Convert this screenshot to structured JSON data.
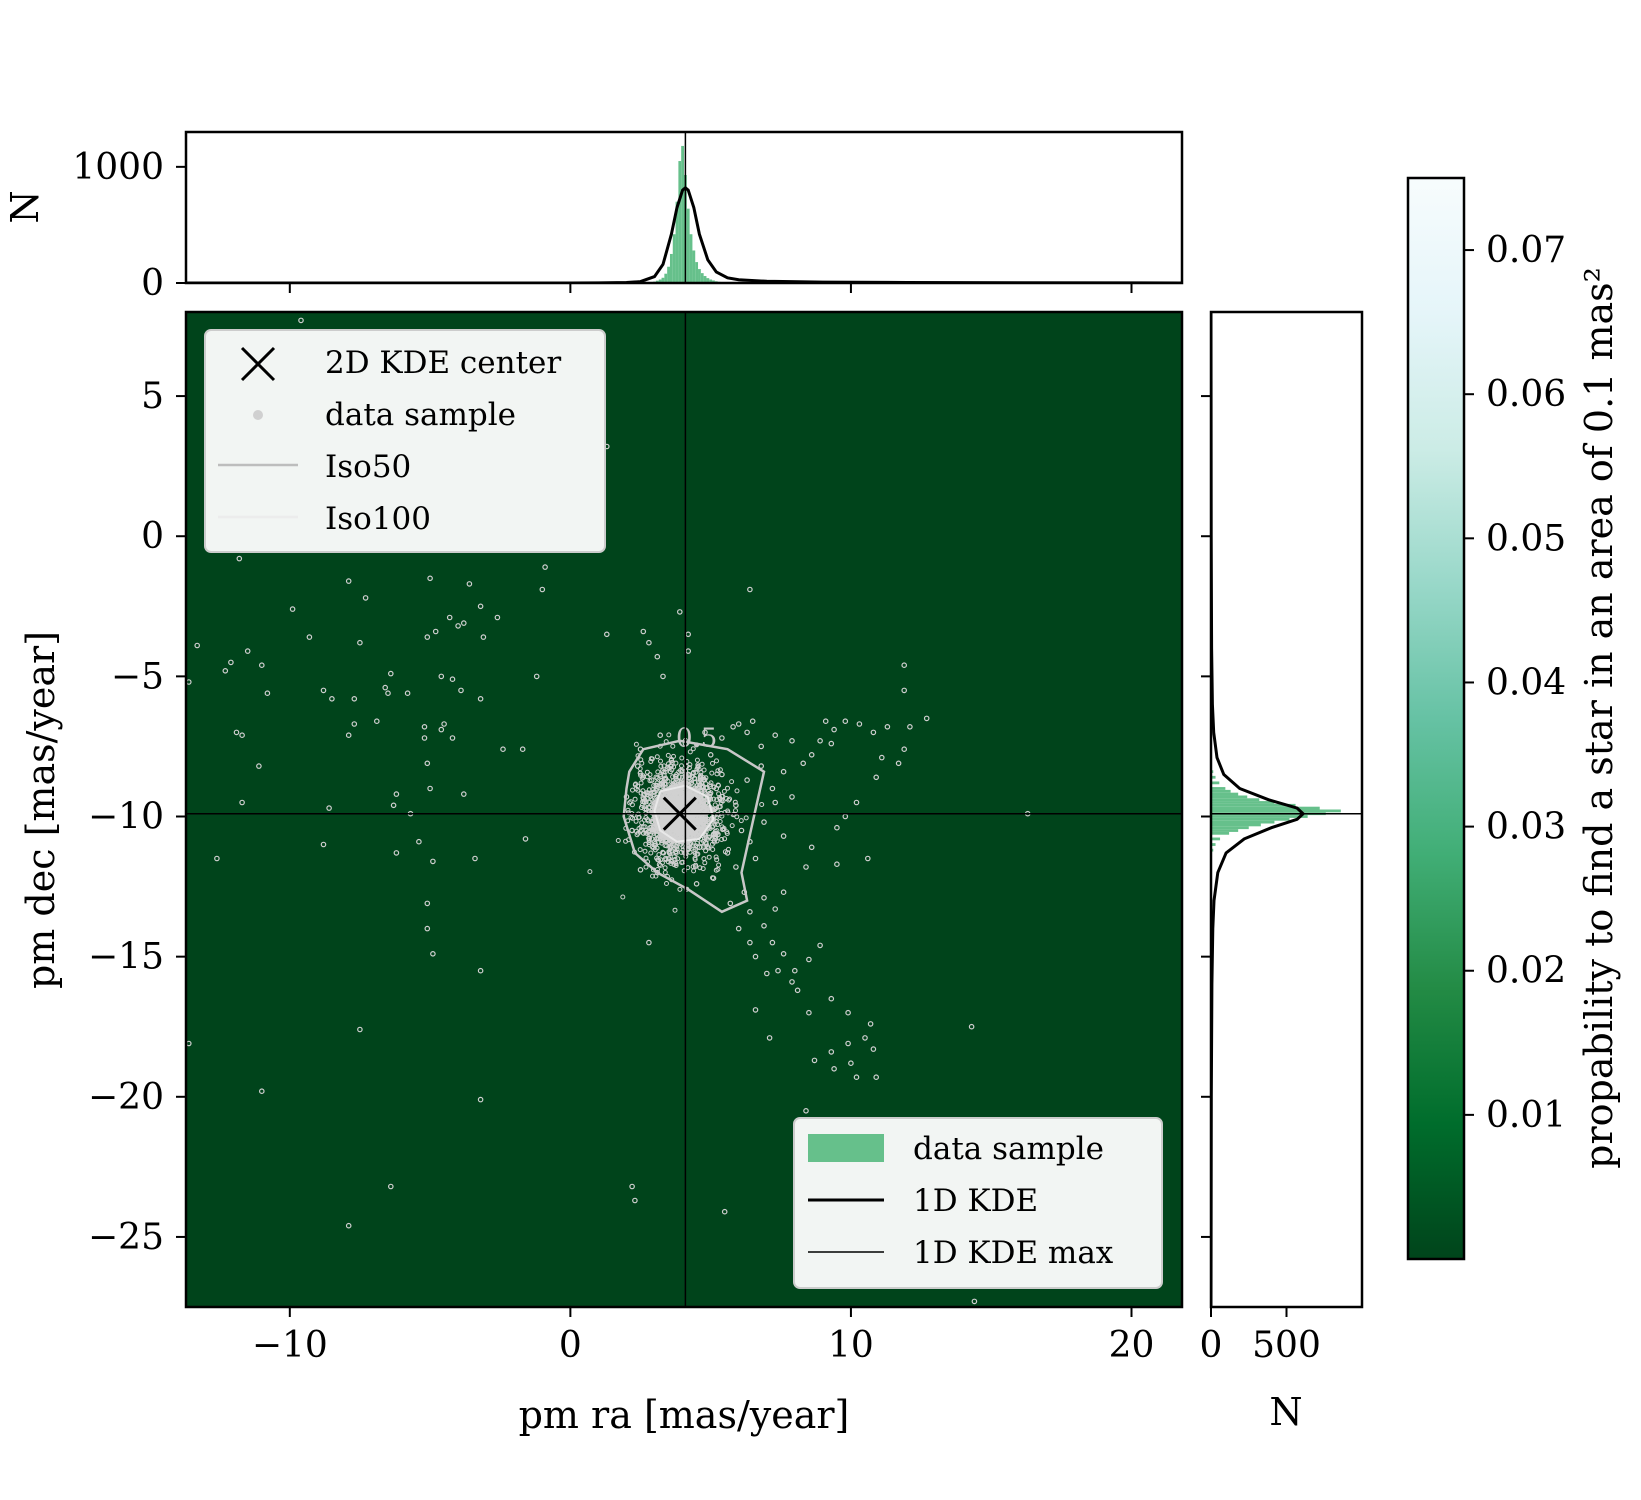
{
  "chart_data": [
    {
      "type": "heatmap",
      "panel": "main",
      "xlabel": "pm ra [mas/year]",
      "ylabel": "pm dec [mas/year]",
      "xlim": [
        -13.7,
        21.8
      ],
      "ylim": [
        -27.5,
        8.0
      ],
      "xticks": [
        -10,
        0,
        10,
        20
      ],
      "xtick_labels": [
        "−10",
        "0",
        "10",
        "20"
      ],
      "yticks": [
        5,
        0,
        -5,
        -10,
        -15,
        -20,
        -25
      ],
      "ytick_labels": [
        "5",
        "0",
        "−5",
        "−10",
        "−15",
        "−20",
        "−25"
      ],
      "background_color": "#00441b",
      "kde_center": {
        "x": 3.9,
        "y": -9.9
      },
      "kde_max_ra": 4.1,
      "kde_max_dec": -9.9,
      "contour_label": "0.5",
      "legend_upper": {
        "position": "upper-left",
        "entries": [
          "2D KDE center",
          "data sample",
          "Iso50",
          "Iso100"
        ]
      },
      "legend_lower": {
        "position": "lower-right",
        "entries": [
          "data sample",
          "1D KDE",
          "1D KDE max"
        ]
      },
      "sample_points": [
        [
          -9.6,
          7.7
        ],
        [
          1.3,
          3.2
        ],
        [
          -11.8,
          -0.8
        ],
        [
          -7.9,
          -1.6
        ],
        [
          -5.0,
          -1.5
        ],
        [
          -3.6,
          -1.7
        ],
        [
          -1.0,
          -1.9
        ],
        [
          -0.9,
          -1.1
        ],
        [
          -7.3,
          -2.2
        ],
        [
          -9.9,
          -2.6
        ],
        [
          -3.2,
          -2.5
        ],
        [
          -2.6,
          -2.9
        ],
        [
          -4.3,
          -2.9
        ],
        [
          -4.0,
          -3.2
        ],
        [
          -3.8,
          -3.1
        ],
        [
          -4.8,
          -3.4
        ],
        [
          -3.1,
          -3.6
        ],
        [
          -5.1,
          -3.6
        ],
        [
          -7.5,
          -3.8
        ],
        [
          -9.3,
          -3.6
        ],
        [
          -13.3,
          -3.9
        ],
        [
          -11.5,
          -4.1
        ],
        [
          -12.1,
          -4.5
        ],
        [
          -12.3,
          -4.8
        ],
        [
          -11.0,
          -4.6
        ],
        [
          -6.4,
          -4.9
        ],
        [
          -1.2,
          -5.0
        ],
        [
          -13.6,
          -5.2
        ],
        [
          -4.6,
          -5.0
        ],
        [
          -4.2,
          -5.1
        ],
        [
          -6.6,
          -5.4
        ],
        [
          -3.9,
          -5.5
        ],
        [
          -8.8,
          -5.5
        ],
        [
          -10.8,
          -5.6
        ],
        [
          -6.5,
          -5.6
        ],
        [
          -5.8,
          -5.6
        ],
        [
          -3.2,
          -5.8
        ],
        [
          -8.5,
          -5.8
        ],
        [
          -7.7,
          -5.8
        ],
        [
          -6.9,
          -6.6
        ],
        [
          -7.7,
          -6.7
        ],
        [
          -4.5,
          -6.7
        ],
        [
          -5.2,
          -6.8
        ],
        [
          -4.6,
          -6.9
        ],
        [
          -7.9,
          -7.1
        ],
        [
          -11.9,
          -7.0
        ],
        [
          -11.7,
          -7.1
        ],
        [
          -5.2,
          -7.2
        ],
        [
          -4.2,
          -7.2
        ],
        [
          -2.4,
          -7.6
        ],
        [
          -1.7,
          -7.6
        ],
        [
          -5.1,
          -8.1
        ],
        [
          -11.1,
          -8.2
        ],
        [
          -6.2,
          -9.2
        ],
        [
          -5.0,
          -9.0
        ],
        [
          -3.8,
          -9.2
        ],
        [
          -11.7,
          -9.5
        ],
        [
          -6.3,
          -9.6
        ],
        [
          -5.7,
          -9.9
        ],
        [
          -8.6,
          -9.7
        ],
        [
          -8.8,
          -11.0
        ],
        [
          -5.4,
          -10.9
        ],
        [
          -6.2,
          -11.3
        ],
        [
          -12.6,
          -11.5
        ],
        [
          -3.4,
          -11.5
        ],
        [
          -4.9,
          -11.6
        ],
        [
          -1.6,
          -10.8
        ],
        [
          -5.1,
          -13.1
        ],
        [
          -5.1,
          -14.0
        ],
        [
          -4.9,
          -14.9
        ],
        [
          -3.2,
          -15.5
        ],
        [
          -7.5,
          -17.6
        ],
        [
          -13.6,
          -18.1
        ],
        [
          -11.0,
          -19.8
        ],
        [
          -3.2,
          -20.1
        ],
        [
          -6.4,
          -23.2
        ],
        [
          -7.9,
          -24.6
        ],
        [
          14.4,
          -27.3
        ],
        [
          2.2,
          -23.2
        ],
        [
          2.3,
          -23.7
        ],
        [
          5.5,
          -24.1
        ],
        [
          8.4,
          -20.5
        ],
        [
          16.3,
          -9.9
        ],
        [
          14.3,
          -17.5
        ],
        [
          1.3,
          -3.5
        ],
        [
          2.6,
          -3.4
        ],
        [
          2.8,
          -3.8
        ],
        [
          3.1,
          -4.3
        ],
        [
          3.3,
          -5.0
        ],
        [
          3.9,
          -2.7
        ],
        [
          4.2,
          -3.5
        ],
        [
          6.4,
          -1.9
        ],
        [
          4.2,
          -4.1
        ],
        [
          12.1,
          -6.8
        ],
        [
          11.9,
          -4.6
        ],
        [
          11.9,
          -5.5
        ],
        [
          12.7,
          -6.5
        ],
        [
          11.3,
          -6.8
        ],
        [
          11.9,
          -7.6
        ],
        [
          11.7,
          -8.1
        ],
        [
          11.1,
          -7.9
        ],
        [
          10.9,
          -8.6
        ],
        [
          10.2,
          -9.5
        ],
        [
          10.8,
          -7.0
        ],
        [
          10.3,
          -6.7
        ],
        [
          9.8,
          -6.6
        ],
        [
          9.4,
          -6.9
        ],
        [
          9.1,
          -6.6
        ],
        [
          9.3,
          -7.4
        ],
        [
          8.9,
          -7.3
        ],
        [
          8.6,
          -7.8
        ],
        [
          8.3,
          -8.1
        ],
        [
          7.9,
          -7.3
        ],
        [
          7.6,
          -8.4
        ],
        [
          7.3,
          -7.1
        ],
        [
          6.8,
          -7.5
        ],
        [
          6.3,
          -7.0
        ],
        [
          5.8,
          -6.8
        ],
        [
          5.4,
          -7.2
        ],
        [
          5.0,
          -7.8
        ],
        [
          6.0,
          -6.7
        ],
        [
          6.5,
          -6.6
        ],
        [
          7.9,
          -9.3
        ],
        [
          7.3,
          -9.5
        ],
        [
          9.8,
          -10.0
        ],
        [
          9.5,
          -10.4
        ],
        [
          7.6,
          -10.7
        ],
        [
          8.6,
          -11.1
        ],
        [
          8.4,
          -11.8
        ],
        [
          9.5,
          -11.7
        ],
        [
          10.6,
          -11.5
        ],
        [
          7.6,
          -12.7
        ],
        [
          7.3,
          -13.3
        ],
        [
          6.9,
          -13.9
        ],
        [
          7.2,
          -14.5
        ],
        [
          7.6,
          -14.9
        ],
        [
          8.0,
          -15.5
        ],
        [
          7.9,
          -15.9
        ],
        [
          8.1,
          -16.2
        ],
        [
          7.4,
          -15.5
        ],
        [
          8.5,
          -15.1
        ],
        [
          8.9,
          -14.6
        ],
        [
          6.6,
          -16.9
        ],
        [
          7.1,
          -17.9
        ],
        [
          8.5,
          -17.0
        ],
        [
          9.3,
          -16.5
        ],
        [
          9.9,
          -17.0
        ],
        [
          10.7,
          -17.4
        ],
        [
          10.5,
          -17.9
        ],
        [
          9.9,
          -18.1
        ],
        [
          9.3,
          -18.4
        ],
        [
          8.7,
          -18.7
        ],
        [
          9.4,
          -19.0
        ],
        [
          10.2,
          -19.3
        ],
        [
          10.8,
          -18.3
        ],
        [
          10.9,
          -19.3
        ],
        [
          10.0,
          -18.8
        ],
        [
          2.8,
          -14.5
        ],
        [
          5.7,
          -13.1
        ],
        [
          6.2,
          -12.7
        ],
        [
          6.4,
          -13.4
        ],
        [
          6.9,
          -12.9
        ],
        [
          6.0,
          -14.0
        ],
        [
          6.4,
          -14.5
        ],
        [
          6.6,
          -15.0
        ],
        [
          7.0,
          -15.6
        ],
        [
          5.9,
          -11.8
        ],
        [
          6.6,
          -11.5
        ],
        [
          5.1,
          -12.2
        ],
        [
          4.5,
          -12.4
        ],
        [
          3.4,
          -11.5
        ],
        [
          2.5,
          -11.9
        ],
        [
          2.2,
          -10.5
        ],
        [
          2.0,
          -9.3
        ],
        [
          2.4,
          -8.2
        ],
        [
          2.5,
          -7.6
        ],
        [
          3.2,
          -7.1
        ],
        [
          3.6,
          -8.0
        ],
        [
          4.1,
          -7.4
        ],
        [
          4.8,
          -7.0
        ],
        [
          5.4,
          -8.5
        ],
        [
          6.3,
          -8.7
        ],
        [
          6.8,
          -8.2
        ],
        [
          7.2,
          -9.0
        ],
        [
          6.9,
          -10.2
        ],
        [
          6.4,
          -10.9
        ],
        [
          5.6,
          -11.3
        ],
        [
          2.9,
          -8.7
        ],
        [
          2.9,
          -10.8
        ],
        [
          3.1,
          -12.0
        ],
        [
          5.2,
          -9.0
        ],
        [
          5.9,
          -9.6
        ],
        [
          6.1,
          -10.5
        ],
        [
          4.6,
          -11.1
        ],
        [
          3.6,
          -10.9
        ]
      ]
    },
    {
      "type": "bar",
      "panel": "top-marginal",
      "xlabel": "",
      "ylabel": "N",
      "xlim": [
        -13.7,
        21.8
      ],
      "ylim": [
        0,
        1300
      ],
      "yticks": [
        0,
        1000
      ],
      "ytick_labels": [
        "0",
        "1000"
      ],
      "bar_color": "#66c08b",
      "bin_width": 0.1,
      "x": [
        2.8,
        2.9,
        3.0,
        3.1,
        3.2,
        3.3,
        3.4,
        3.5,
        3.6,
        3.7,
        3.8,
        3.9,
        4.0,
        4.1,
        4.2,
        4.3,
        4.4,
        4.5,
        4.6,
        4.7,
        4.8,
        4.9,
        5.0,
        5.1,
        5.2,
        5.3,
        5.4,
        5.5
      ],
      "values": [
        5,
        8,
        12,
        20,
        30,
        45,
        80,
        140,
        250,
        420,
        700,
        1050,
        1180,
        930,
        640,
        420,
        280,
        180,
        120,
        85,
        60,
        42,
        30,
        22,
        15,
        10,
        7,
        4
      ],
      "kde": {
        "x": [
          -13.7,
          0,
          1.0,
          2.0,
          2.5,
          3.0,
          3.3,
          3.6,
          3.8,
          4.0,
          4.1,
          4.2,
          4.4,
          4.6,
          4.9,
          5.2,
          5.6,
          6.0,
          7.0,
          9.0,
          12.0,
          21.8
        ],
        "values": [
          0,
          0,
          1,
          4,
          12,
          55,
          160,
          420,
          650,
          800,
          820,
          800,
          650,
          420,
          200,
          95,
          45,
          28,
          15,
          8,
          4,
          0
        ]
      },
      "kde_max_x": 4.1
    },
    {
      "type": "bar",
      "panel": "right-marginal",
      "xlabel": "N",
      "ylabel": "",
      "xlim": [
        0,
        1000
      ],
      "ylim": [
        -27.5,
        8.0
      ],
      "xticks": [
        0,
        500
      ],
      "xtick_labels": [
        "0",
        "500"
      ],
      "bar_color": "#66c08b",
      "bin_width": 0.1,
      "y": [
        -11.2,
        -11.0,
        -10.8,
        -10.6,
        -10.5,
        -10.4,
        -10.3,
        -10.2,
        -10.1,
        -10.0,
        -9.9,
        -9.8,
        -9.7,
        -9.6,
        -9.5,
        -9.4,
        -9.3,
        -9.2,
        -9.1,
        -9.0,
        -8.8,
        -8.6,
        -8.4
      ],
      "values": [
        15,
        30,
        60,
        120,
        180,
        250,
        330,
        420,
        520,
        640,
        760,
        860,
        720,
        560,
        420,
        320,
        240,
        180,
        130,
        95,
        55,
        30,
        15
      ],
      "kde": {
        "y": [
          -27.5,
          -20.0,
          -16.0,
          -14.0,
          -13.0,
          -12.0,
          -11.3,
          -10.8,
          -10.4,
          -10.1,
          -9.9,
          -9.7,
          -9.4,
          -9.0,
          -8.5,
          -7.9,
          -7.0,
          -6.0,
          -4.0,
          0.0,
          8.0
        ],
        "values": [
          0,
          2,
          6,
          12,
          20,
          45,
          100,
          220,
          400,
          570,
          610,
          570,
          380,
          190,
          85,
          40,
          18,
          9,
          4,
          1,
          0
        ]
      },
      "kde_max_y": -9.9
    },
    {
      "type": "heatmap",
      "panel": "colorbar",
      "ylabel": "propability to find a star in an area of 0.1 mas²",
      "range": [
        0.0,
        0.075
      ],
      "ticks": [
        0.01,
        0.02,
        0.03,
        0.04,
        0.05,
        0.06,
        0.07
      ],
      "tick_labels": [
        "0.01",
        "0.02",
        "0.03",
        "0.04",
        "0.05",
        "0.06",
        "0.07"
      ],
      "colormap": "BuGn",
      "colormap_stops": [
        "#00441b",
        "#006d2c",
        "#238b45",
        "#41ae76",
        "#66c2a4",
        "#99d8c9",
        "#ccece6",
        "#e5f5f9",
        "#f7fcfd"
      ]
    }
  ],
  "colors": {
    "background": "#00441b",
    "histogram": "#66c08b",
    "points": "#d0d0d0",
    "contour": "#c8c8c8",
    "lines": "#000000"
  }
}
